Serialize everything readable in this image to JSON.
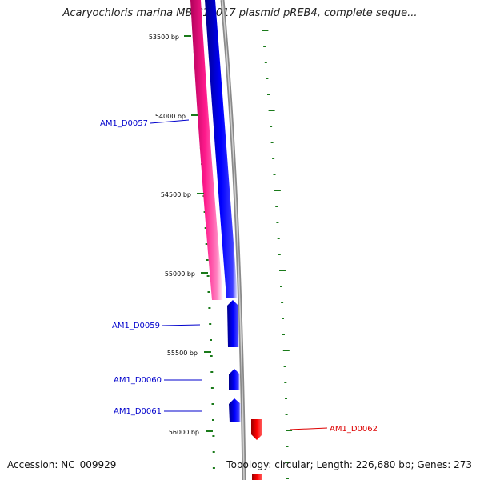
{
  "title": "Acaryochloris marina MBIC11017 plasmid pREB4, complete seque...",
  "accession": "Accession: NC_009929",
  "footer": "Topology: circular; Length: 226,680 bp; Genes: 273",
  "scale_labels": [
    "53500 bp",
    "54000 bp",
    "54500 bp",
    "55000 bp",
    "55500 bp",
    "56000 bp"
  ],
  "genes": [
    {
      "label": "AM1_D0057",
      "color": "#0000cc"
    },
    {
      "label": "AM1_D0059",
      "color": "#0000cc"
    },
    {
      "label": "AM1_D0060",
      "color": "#0000cc"
    },
    {
      "label": "AM1_D0061",
      "color": "#0000cc"
    },
    {
      "label": "AM1_D0062",
      "color": "#dd0000"
    }
  ],
  "colors": {
    "magenta_track": "#ff1493",
    "blue_track": "#0000ee",
    "gray_backbone": "#8a8a8a",
    "tick_green": "#1a7a1a",
    "reverse_gene": "#dd0000"
  }
}
